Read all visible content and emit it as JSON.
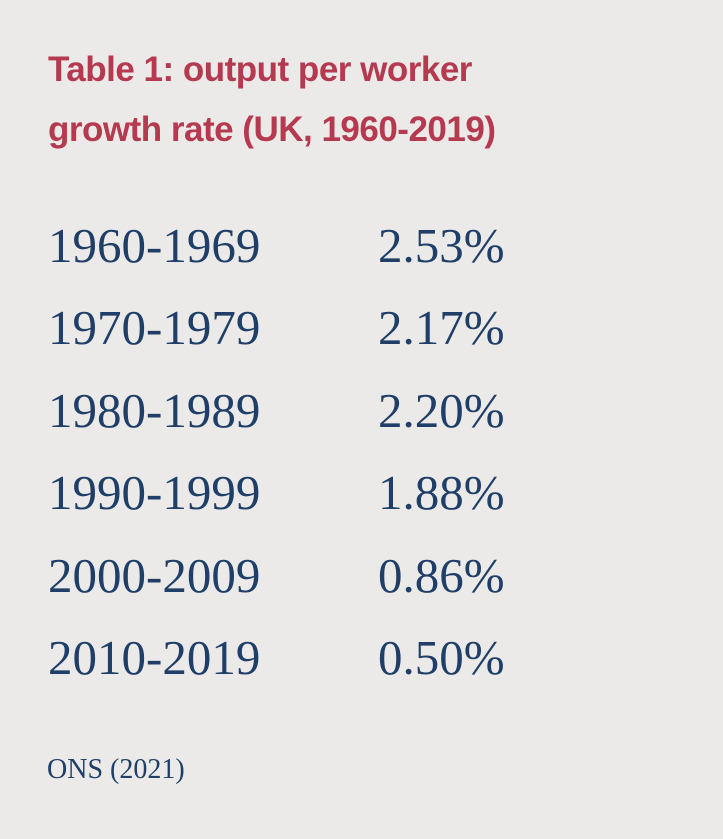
{
  "header": {
    "title": "Table 1: output per worker growth rate (UK, 1960-2019)"
  },
  "table": {
    "rows": [
      [
        "1960-1969",
        "2.53%"
      ],
      [
        "1970-1979",
        "2.17%"
      ],
      [
        "1980-1989",
        "2.20%"
      ],
      [
        "1990-1999",
        "1.88%"
      ],
      [
        "2000-2009",
        "0.86%"
      ],
      [
        "2010-2019",
        "0.50%"
      ]
    ]
  },
  "footer": {
    "source": "ONS (2021)"
  }
}
